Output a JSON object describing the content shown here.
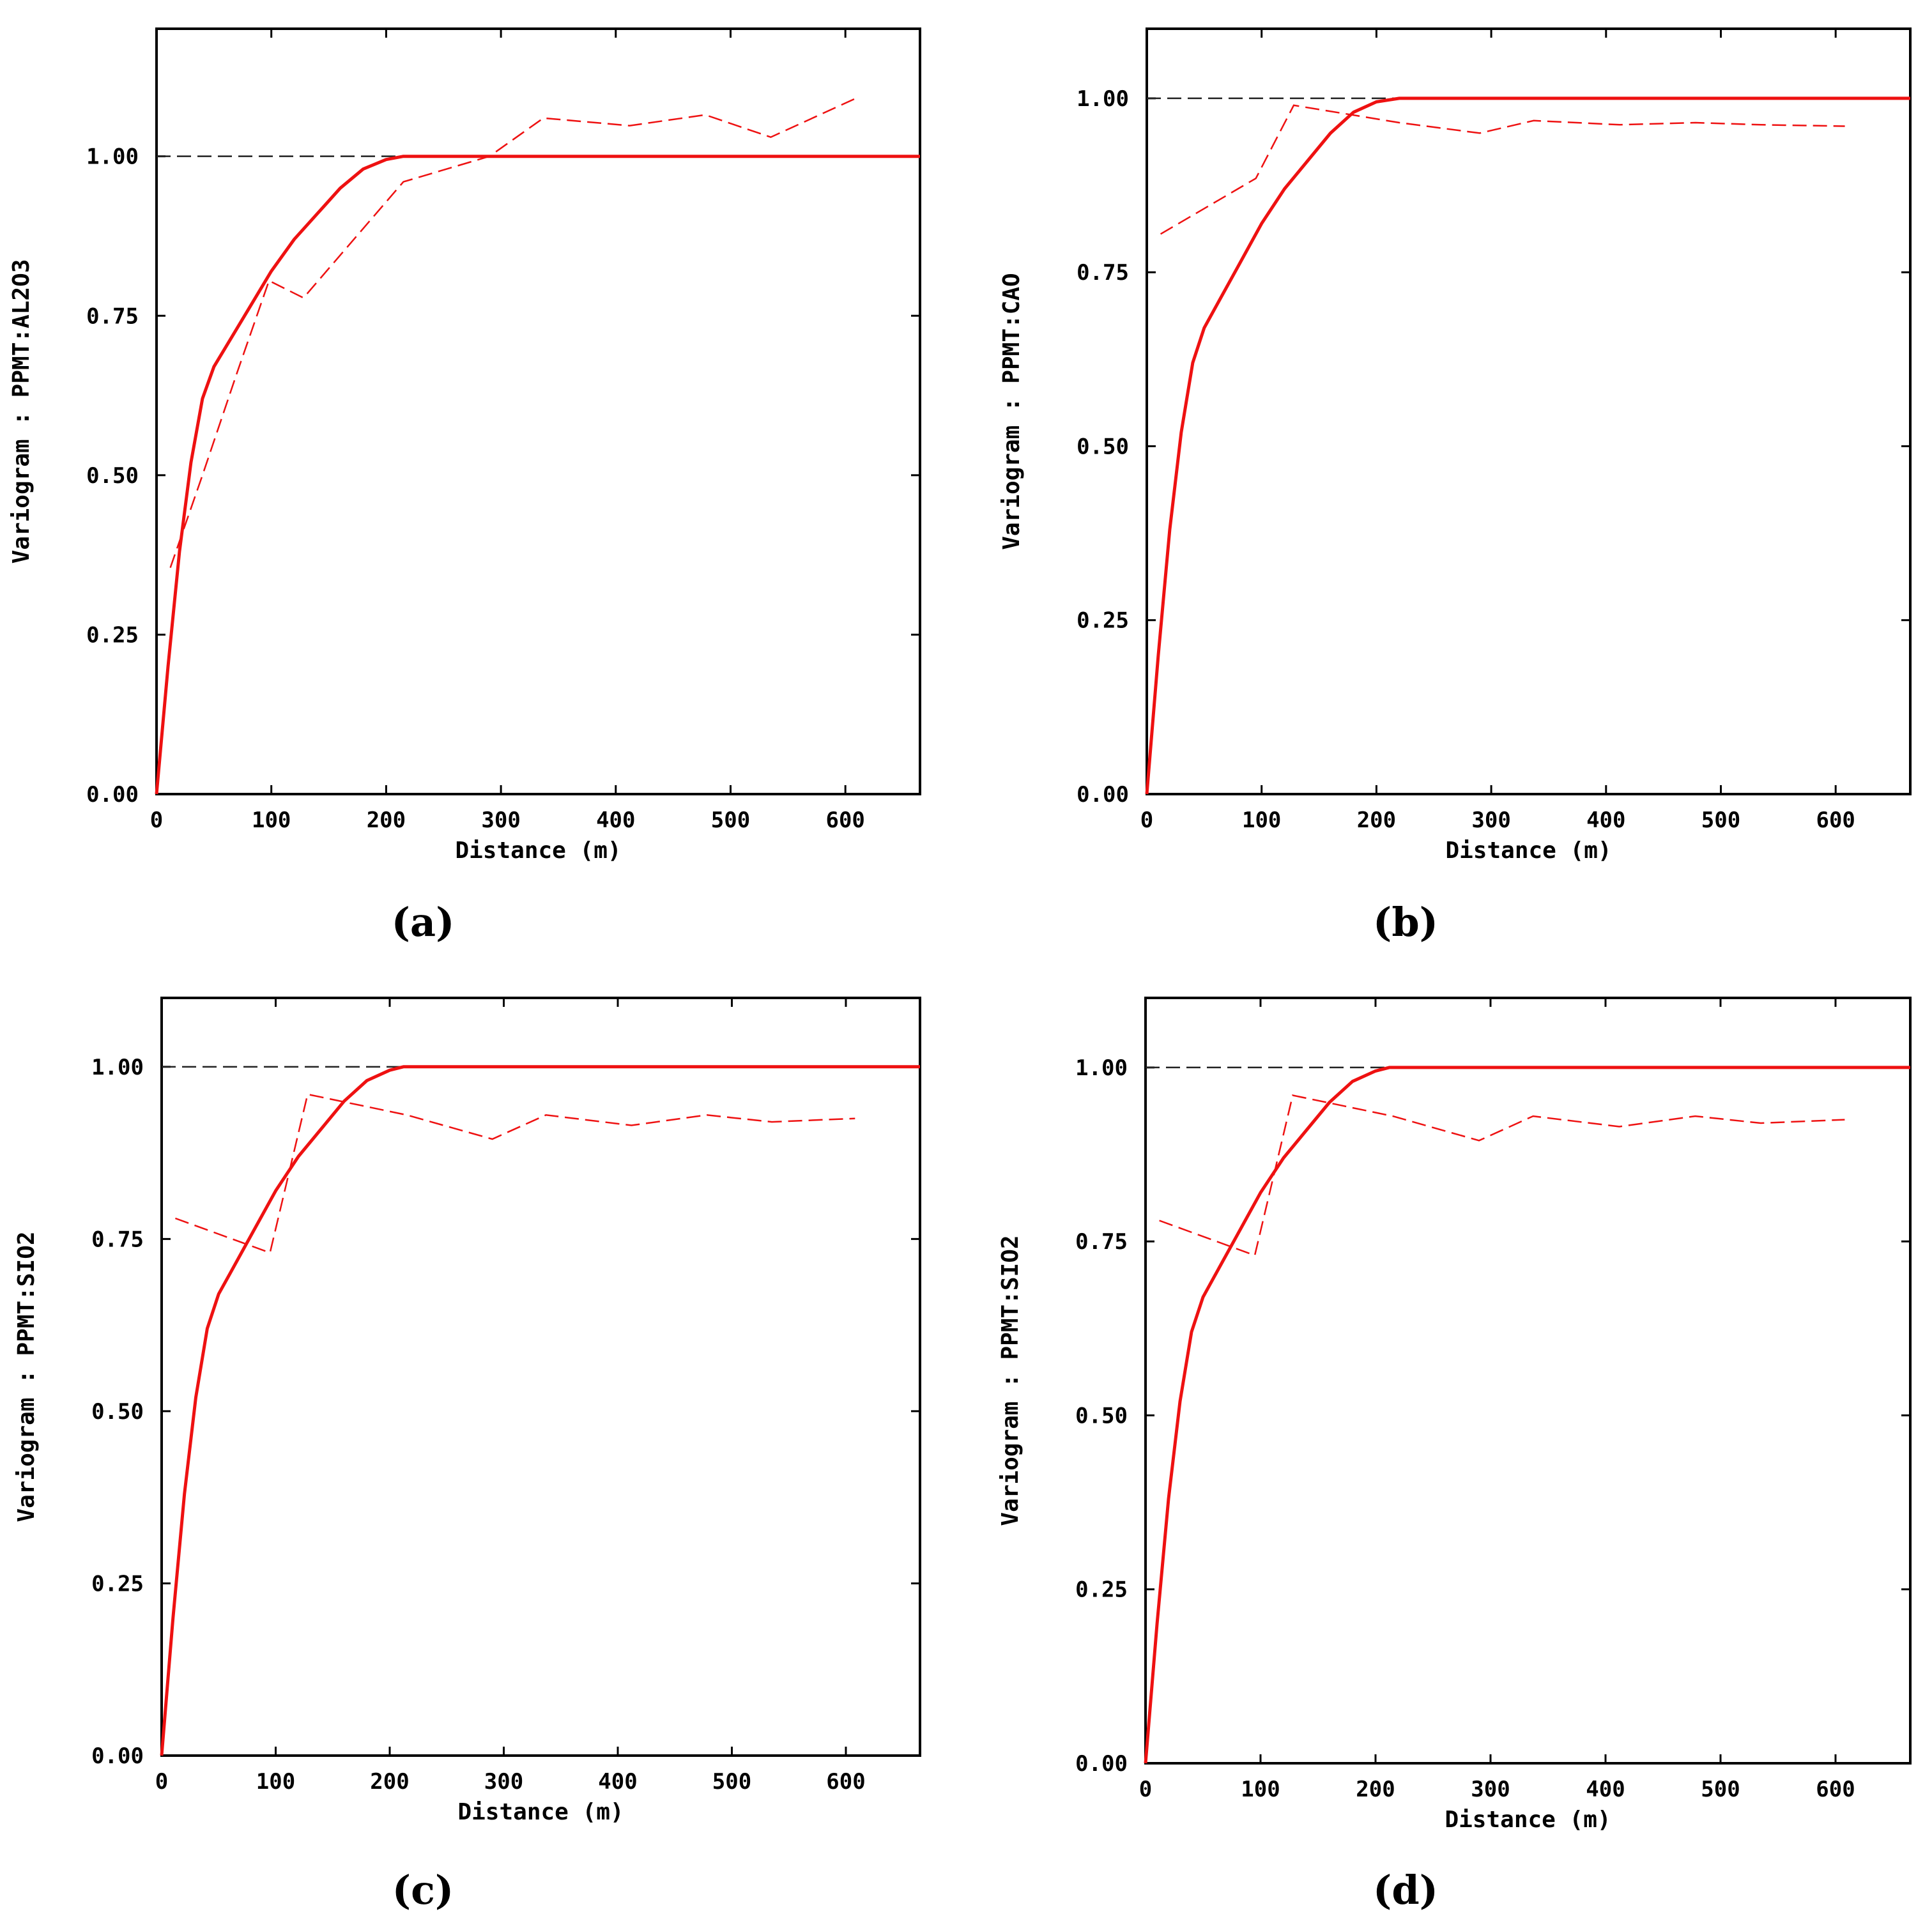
{
  "colors": {
    "model": "#ee1111",
    "experimental": "#ee1111",
    "sill": "#222222",
    "axis": "#000000"
  },
  "chart_data": [
    {
      "type": "line",
      "panel_label": "(a)",
      "xlabel": "Distance (m)",
      "ylabel": "Variogram : PPMT:AL2O3",
      "xlim": [
        0,
        665
      ],
      "ylim": [
        0,
        1.2
      ],
      "xticks": [
        0,
        100,
        200,
        300,
        400,
        500,
        600
      ],
      "yticks": [
        0,
        0.25,
        0.5,
        0.75,
        1.0
      ],
      "xtick_labels": [
        "0",
        "100",
        "200",
        "300",
        "400",
        "500",
        "600"
      ],
      "ytick_labels": [
        "0.00",
        "0.25",
        "0.50",
        "0.75",
        "1.00"
      ],
      "grid": false,
      "sill": 1.0,
      "series": [
        {
          "style": "solid",
          "x": [
            0,
            10,
            20,
            30,
            40,
            50,
            60,
            80,
            100,
            120,
            140,
            160,
            180,
            200,
            215,
            665
          ],
          "y": [
            0,
            0.2,
            0.38,
            0.52,
            0.62,
            0.67,
            0.7,
            0.76,
            0.82,
            0.87,
            0.91,
            0.95,
            0.98,
            0.995,
            1.0,
            1.0
          ]
        },
        {
          "style": "dashed",
          "x": [
            12,
            40,
            70,
            98,
            128,
            215,
            290,
            337,
            412,
            478,
            535,
            608
          ],
          "y": [
            0.355,
            0.5,
            0.66,
            0.805,
            0.778,
            0.96,
            1.0,
            1.06,
            1.048,
            1.065,
            1.03,
            1.09
          ]
        }
      ]
    },
    {
      "type": "line",
      "panel_label": "(b)",
      "xlabel": "Distance (m)",
      "ylabel": "Variogram : PPMT:CAO",
      "xlim": [
        0,
        665
      ],
      "ylim": [
        0,
        1.1
      ],
      "xticks": [
        0,
        100,
        200,
        300,
        400,
        500,
        600
      ],
      "yticks": [
        0,
        0.25,
        0.5,
        0.75,
        1.0
      ],
      "xtick_labels": [
        "0",
        "100",
        "200",
        "300",
        "400",
        "500",
        "600"
      ],
      "ytick_labels": [
        "0.00",
        "0.25",
        "0.50",
        "0.75",
        "1.00"
      ],
      "grid": false,
      "sill": 1.0,
      "series": [
        {
          "style": "solid",
          "x": [
            0,
            10,
            20,
            30,
            40,
            50,
            60,
            80,
            100,
            120,
            140,
            160,
            180,
            200,
            220,
            665
          ],
          "y": [
            0,
            0.2,
            0.38,
            0.52,
            0.62,
            0.67,
            0.7,
            0.76,
            0.82,
            0.87,
            0.91,
            0.95,
            0.98,
            0.995,
            1.0,
            1.0
          ]
        },
        {
          "style": "dashed",
          "x": [
            12,
            95,
            128,
            220,
            290,
            337,
            412,
            478,
            535,
            608
          ],
          "y": [
            0.805,
            0.885,
            0.99,
            0.965,
            0.95,
            0.968,
            0.962,
            0.965,
            0.962,
            0.96
          ]
        }
      ]
    },
    {
      "type": "line",
      "panel_label": "(c)",
      "xlabel": "Distance (m)",
      "ylabel": "Variogram : PPMT:SIO2",
      "xlim": [
        0,
        665
      ],
      "ylim": [
        0,
        1.1
      ],
      "xticks": [
        0,
        100,
        200,
        300,
        400,
        500,
        600
      ],
      "yticks": [
        0,
        0.25,
        0.5,
        0.75,
        1.0
      ],
      "xtick_labels": [
        "0",
        "100",
        "200",
        "300",
        "400",
        "500",
        "600"
      ],
      "ytick_labels": [
        "0.00",
        "0.25",
        "0.50",
        "0.75",
        "1.00"
      ],
      "grid": false,
      "sill": 1.0,
      "series": [
        {
          "style": "solid",
          "x": [
            0,
            10,
            20,
            30,
            40,
            50,
            60,
            80,
            100,
            120,
            140,
            160,
            180,
            200,
            212,
            665
          ],
          "y": [
            0,
            0.2,
            0.38,
            0.52,
            0.62,
            0.67,
            0.7,
            0.76,
            0.82,
            0.87,
            0.91,
            0.95,
            0.98,
            0.995,
            1.0,
            1.0
          ]
        },
        {
          "style": "dashed",
          "x": [
            12,
            95,
            128,
            215,
            290,
            337,
            412,
            478,
            535,
            608
          ],
          "y": [
            0.78,
            0.73,
            0.96,
            0.93,
            0.895,
            0.93,
            0.915,
            0.93,
            0.92,
            0.925
          ]
        }
      ]
    },
    {
      "type": "line",
      "panel_label": "(d)",
      "xlabel": "Distance (m)",
      "ylabel": "Variogram : PPMT:SIO2",
      "xlim": [
        0,
        665
      ],
      "ylim": [
        0,
        1.1
      ],
      "xticks": [
        0,
        100,
        200,
        300,
        400,
        500,
        600
      ],
      "yticks": [
        0,
        0.25,
        0.5,
        0.75,
        1.0
      ],
      "xtick_labels": [
        "0",
        "100",
        "200",
        "300",
        "400",
        "500",
        "600"
      ],
      "ytick_labels": [
        "0.00",
        "0.25",
        "0.50",
        "0.75",
        "1.00"
      ],
      "grid": false,
      "sill": 1.0,
      "series": [
        {
          "style": "solid",
          "x": [
            0,
            10,
            20,
            30,
            40,
            50,
            60,
            80,
            100,
            120,
            140,
            160,
            180,
            200,
            212,
            665
          ],
          "y": [
            0,
            0.2,
            0.38,
            0.52,
            0.62,
            0.67,
            0.7,
            0.76,
            0.82,
            0.87,
            0.91,
            0.95,
            0.98,
            0.995,
            1.0,
            1.0
          ]
        },
        {
          "style": "dashed",
          "x": [
            12,
            95,
            128,
            215,
            290,
            337,
            412,
            478,
            535,
            608
          ],
          "y": [
            0.78,
            0.73,
            0.96,
            0.93,
            0.895,
            0.93,
            0.915,
            0.93,
            0.92,
            0.925
          ]
        }
      ]
    }
  ]
}
